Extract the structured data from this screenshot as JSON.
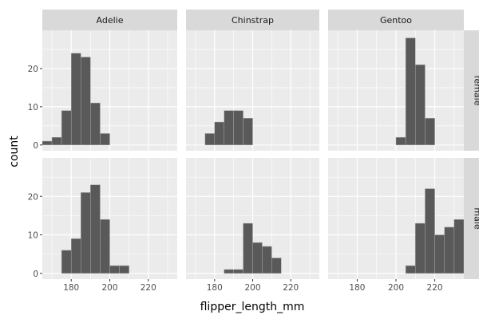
{
  "chart_data": {
    "type": "bar",
    "subtype": "faceted-histogram",
    "xlabel": "flipper_length_mm",
    "ylabel": "count",
    "xlim": [
      165,
      235
    ],
    "ylim": [
      -1.5,
      30
    ],
    "bin_width": 5,
    "x_ticks": [
      "180",
      "200",
      "220"
    ],
    "x_tick_values": [
      180,
      200,
      220
    ],
    "y_ticks": [
      "0",
      "10",
      "20"
    ],
    "y_tick_values": [
      0,
      10,
      20
    ],
    "columns": [
      "Adelie",
      "Chinstrap",
      "Gentoo"
    ],
    "rows": [
      "female",
      "male"
    ],
    "grid": true,
    "colors": {
      "panel_bg": "#ebebeb",
      "strip_bg": "#d9d9d9",
      "bar_fill": "#595959",
      "bar_edge": "#a6a6a6",
      "grid": "#ffffff"
    },
    "panels": [
      {
        "row": "female",
        "column": "Adelie",
        "bins": [
          [
            167.5,
            1
          ],
          [
            172.5,
            2
          ],
          [
            177.5,
            9
          ],
          [
            182.5,
            24
          ],
          [
            187.5,
            23
          ],
          [
            192.5,
            11
          ],
          [
            197.5,
            3
          ]
        ]
      },
      {
        "row": "female",
        "column": "Chinstrap",
        "bins": [
          [
            177.5,
            3
          ],
          [
            182.5,
            6
          ],
          [
            187.5,
            9
          ],
          [
            192.5,
            9
          ],
          [
            197.5,
            7
          ]
        ]
      },
      {
        "row": "female",
        "column": "Gentoo",
        "bins": [
          [
            202.5,
            2
          ],
          [
            207.5,
            28
          ],
          [
            212.5,
            21
          ],
          [
            217.5,
            7
          ]
        ]
      },
      {
        "row": "male",
        "column": "Adelie",
        "bins": [
          [
            177.5,
            6
          ],
          [
            182.5,
            9
          ],
          [
            187.5,
            21
          ],
          [
            192.5,
            23
          ],
          [
            197.5,
            14
          ],
          [
            202.5,
            2
          ],
          [
            207.5,
            2
          ]
        ]
      },
      {
        "row": "male",
        "column": "Chinstrap",
        "bins": [
          [
            187.5,
            1
          ],
          [
            192.5,
            1
          ],
          [
            197.5,
            13
          ],
          [
            202.5,
            8
          ],
          [
            207.5,
            7
          ],
          [
            212.5,
            4
          ]
        ]
      },
      {
        "row": "male",
        "column": "Gentoo",
        "bins": [
          [
            207.5,
            2
          ],
          [
            212.5,
            13
          ],
          [
            217.5,
            22
          ],
          [
            222.5,
            10
          ],
          [
            227.5,
            12
          ],
          [
            232.5,
            14
          ]
        ]
      }
    ]
  }
}
